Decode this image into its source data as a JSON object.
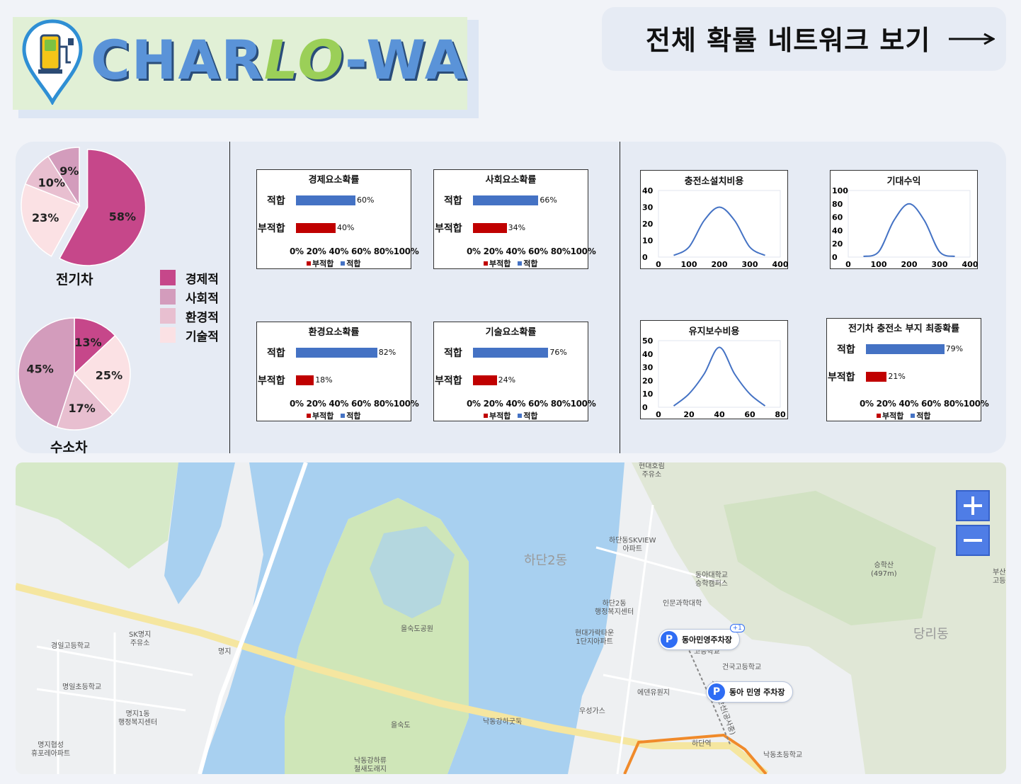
{
  "header": {
    "logo": {
      "part1": "CHAR",
      "part2": "LO",
      "part3": "-WA"
    },
    "network_button": {
      "label": "전체 확률 네트워크 보기",
      "icon": "arrow-right-icon"
    }
  },
  "colors": {
    "economic": "#c6478a",
    "social": "#d39cbc",
    "environmental": "#e8bfd0",
    "technical": "#fbe1e4",
    "fit_bar": "#4472c4",
    "unfit_bar": "#c00000",
    "curve": "#4472c4",
    "accent": "#4f7de6"
  },
  "pies": {
    "legend": [
      "경제적",
      "사회적",
      "환경적",
      "기술적"
    ],
    "ev": {
      "title": "전기차",
      "slices": [
        {
          "label": "58%",
          "value": 58
        },
        {
          "label": "9%",
          "value": 9
        },
        {
          "label": "10%",
          "value": 10
        },
        {
          "label": "23%",
          "value": 23
        }
      ]
    },
    "hydrogen": {
      "title": "수소차",
      "slices": [
        {
          "label": "13%",
          "value": 13
        },
        {
          "label": "25%",
          "value": 25
        },
        {
          "label": "17%",
          "value": 17
        },
        {
          "label": "45%",
          "value": 45
        }
      ]
    }
  },
  "bars": {
    "fit_label": "적합",
    "unfit_label": "부적합",
    "axis_ticks": "0%  20% 40% 60% 80%100%",
    "legend_unfit": "부적합",
    "legend_fit": "적합",
    "final_title": "전기차 충전소 부지 최종확률"
  },
  "chart_data": [
    {
      "type": "bar",
      "title": "경제요소확률",
      "categories": [
        "적합",
        "부적합"
      ],
      "values": [
        60,
        40
      ],
      "value_labels": [
        "60%",
        "40%"
      ],
      "xlim": [
        0,
        100
      ]
    },
    {
      "type": "bar",
      "title": "사회요소확률",
      "categories": [
        "적합",
        "부적합"
      ],
      "values": [
        66,
        34
      ],
      "value_labels": [
        "66%",
        "34%"
      ],
      "xlim": [
        0,
        100
      ]
    },
    {
      "type": "bar",
      "title": "환경요소확률",
      "categories": [
        "적합",
        "부적합"
      ],
      "values": [
        82,
        18
      ],
      "value_labels": [
        "82%",
        "18%"
      ],
      "xlim": [
        0,
        100
      ]
    },
    {
      "type": "bar",
      "title": "기술요소확률",
      "categories": [
        "적합",
        "부적합"
      ],
      "values": [
        76,
        24
      ],
      "value_labels": [
        "76%",
        "24%"
      ],
      "xlim": [
        0,
        100
      ]
    },
    {
      "type": "bar",
      "title": "전기차 충전소 부지 최종확률",
      "categories": [
        "적합",
        "부적합"
      ],
      "values": [
        79,
        21
      ],
      "value_labels": [
        "79%",
        "21%"
      ],
      "xlim": [
        0,
        100
      ]
    },
    {
      "type": "line",
      "title": "충전소설치비용",
      "xlim": [
        0,
        400
      ],
      "ylim": [
        0,
        40
      ],
      "xticks": [
        "0",
        "100",
        "200",
        "300",
        "400"
      ],
      "yticks": [
        "0",
        "10",
        "20",
        "30",
        "40"
      ],
      "x": [
        50,
        100,
        150,
        200,
        250,
        300,
        350
      ],
      "y": [
        1,
        6,
        22,
        30,
        22,
        6,
        1
      ]
    },
    {
      "type": "line",
      "title": "기대수익",
      "xlim": [
        0,
        400
      ],
      "ylim": [
        0,
        100
      ],
      "xticks": [
        "0",
        "100",
        "200",
        "300",
        "400"
      ],
      "yticks": [
        "0",
        "20",
        "40",
        "60",
        "80",
        "100"
      ],
      "x": [
        50,
        100,
        150,
        200,
        250,
        300,
        350
      ],
      "y": [
        1,
        8,
        55,
        80,
        55,
        8,
        1
      ]
    },
    {
      "type": "line",
      "title": "유지보수비용",
      "xlim": [
        0,
        80
      ],
      "ylim": [
        0,
        50
      ],
      "xticks": [
        "0",
        "20",
        "40",
        "60",
        "80"
      ],
      "yticks": [
        "0",
        "10",
        "20",
        "30",
        "40",
        "50"
      ],
      "x": [
        10,
        20,
        30,
        40,
        50,
        60,
        70
      ],
      "y": [
        1,
        10,
        25,
        45,
        25,
        10,
        1
      ]
    }
  ],
  "map": {
    "district_labels": [
      "하단2동",
      "당리동"
    ],
    "places": [
      "현대호림\n주유소",
      "하단동SKVIEW\n아파트",
      "동아대학교\n승학캠퍼스",
      "인문과학대학",
      "하단2동\n행정복지센터",
      "현대가락타운\n1단지아파트",
      "을숙도공원",
      "건국고등학교",
      "에덴유원지",
      "우성가스",
      "하단역",
      "낙동초등학교",
      "낙동강하굿둑",
      "을숙도",
      "낙동강하류\n철새도래지",
      "SK명지\n주유소",
      "경일고등학교",
      "명일초등학교",
      "명지1동\n행정복지센터",
      "명지협성\n휴포레아파트",
      "명지",
      "승학산\n(497m)",
      "부산\n고등",
      "고등학교",
      "사상하단선(공사중)"
    ],
    "parking": [
      {
        "label": "동아민영주차장",
        "badge": "+1"
      },
      {
        "label": "동아 민영 주차장"
      }
    ],
    "zoom_in": "+",
    "zoom_out": "−"
  }
}
